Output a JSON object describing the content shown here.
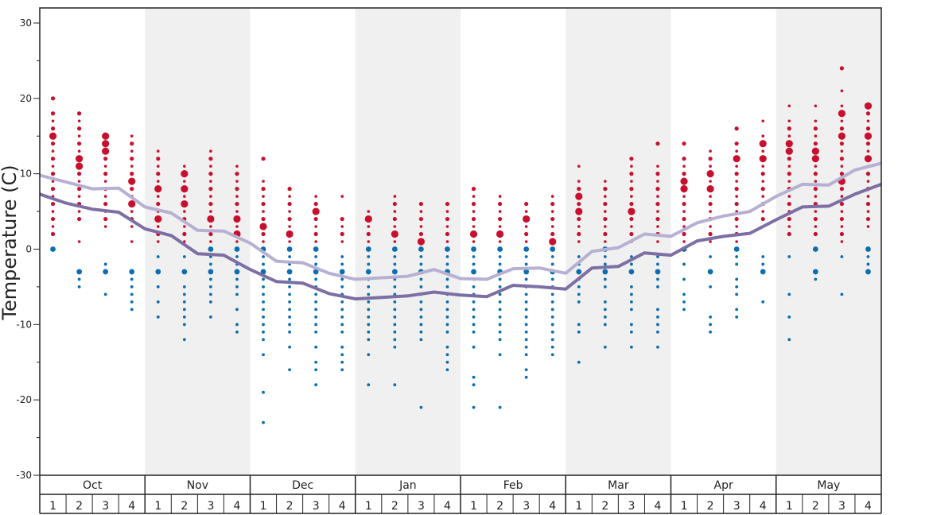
{
  "chart_data": {
    "type": "scatter",
    "title": "",
    "ylabel": "Temperature (C)",
    "xlabel": "",
    "ylim": [
      -30,
      32
    ],
    "y_ticks": [
      30,
      20,
      10,
      0,
      -10,
      -20,
      -30
    ],
    "months": [
      "Oct",
      "Nov",
      "Dec",
      "Jan",
      "Feb",
      "Mar",
      "Apr",
      "May"
    ],
    "weeks": [
      "1",
      "2",
      "3",
      "4"
    ],
    "shaded_months": [
      "Nov",
      "Jan",
      "Mar",
      "May"
    ],
    "colors": {
      "warm": "#c8102e",
      "cold": "#0a6eb0",
      "line_light": "#b7b0d2",
      "line_dark": "#7d6fa3",
      "shade": "#f0f0f0"
    },
    "series": [
      {
        "values": [
          9.8,
          8.9,
          8.0,
          8.1,
          5.6,
          4.8,
          2.5,
          2.4,
          0.8,
          -1.6,
          -1.8,
          -3.2,
          -4.0,
          -3.8,
          -3.6,
          -2.7,
          -3.9,
          -4.0,
          -2.6,
          -2.5,
          -3.2,
          -0.3,
          0.2,
          2.0,
          1.7,
          3.5,
          4.4,
          5.0,
          7.0,
          8.6,
          8.5,
          10.5,
          11.4
        ]
      },
      {
        "values": [
          7.3,
          6.1,
          5.3,
          4.9,
          2.7,
          1.8,
          -0.6,
          -0.8,
          -2.7,
          -4.3,
          -4.5,
          -5.9,
          -6.6,
          -6.4,
          -6.2,
          -5.7,
          -6.1,
          -6.3,
          -4.8,
          -5.0,
          -5.3,
          -2.5,
          -2.3,
          -0.5,
          -0.8,
          1.1,
          1.7,
          2.1,
          3.9,
          5.6,
          5.7,
          7.3,
          8.6
        ]
      }
    ],
    "x_positions_note": "week index 0..32 across Oct w1 to end of May",
    "observations": [
      {
        "week": 0,
        "warm": [
          20,
          18,
          17,
          16,
          15,
          14,
          13,
          12,
          11,
          10,
          9,
          8,
          7,
          6,
          5,
          4,
          3,
          2
        ],
        "warm_big": [
          15
        ],
        "cold": [
          0
        ]
      },
      {
        "week": 1,
        "warm": [
          18,
          17,
          16,
          15,
          14,
          13,
          12,
          11,
          10,
          9,
          8,
          7,
          6,
          5,
          4,
          1
        ],
        "warm_big": [
          12,
          11
        ],
        "cold": [
          -3,
          -4,
          -5
        ]
      },
      {
        "week": 2,
        "warm": [
          15,
          14,
          13,
          12,
          11,
          10,
          9,
          8,
          7,
          6,
          5,
          4,
          3
        ],
        "warm_big": [
          15,
          14,
          13
        ],
        "cold": [
          -2,
          -3,
          -6
        ]
      },
      {
        "week": 3,
        "warm": [
          15,
          14,
          13,
          12,
          11,
          10,
          9,
          8,
          7,
          6,
          5,
          4,
          3,
          1
        ],
        "warm_big": [
          9,
          6
        ],
        "cold": [
          -3,
          -4,
          -5,
          -6,
          -7,
          -8
        ]
      },
      {
        "week": 4,
        "warm": [
          13,
          12,
          11,
          10,
          9,
          8,
          7,
          6,
          5,
          4,
          3,
          2,
          1
        ],
        "warm_big": [
          8,
          4
        ],
        "cold": [
          -1,
          -3,
          -5,
          -7,
          -9
        ]
      },
      {
        "week": 5,
        "warm": [
          11,
          10,
          9,
          8,
          7,
          6,
          5,
          4,
          3,
          2,
          1
        ],
        "warm_big": [
          10,
          8,
          6
        ],
        "cold": [
          -1,
          -3,
          -5,
          -6,
          -7,
          -8,
          -9,
          -10,
          -12
        ]
      },
      {
        "week": 6,
        "warm": [
          13,
          12,
          11,
          10,
          9,
          8,
          7,
          6,
          5,
          4,
          3,
          2,
          1
        ],
        "warm_big": [
          4
        ],
        "cold": [
          0,
          -1,
          -2,
          -3,
          -4,
          -5,
          -6,
          -7,
          -9
        ]
      },
      {
        "week": 7,
        "warm": [
          11,
          10,
          9,
          8,
          7,
          6,
          5,
          4,
          3,
          2,
          1
        ],
        "warm_big": [
          4,
          2
        ],
        "cold": [
          0,
          -1,
          -2,
          -3,
          -4,
          -5,
          -6,
          -8,
          -10,
          -11
        ]
      },
      {
        "week": 8,
        "warm": [
          12,
          9,
          8,
          7,
          6,
          5,
          4,
          3,
          2,
          1
        ],
        "warm_big": [
          3
        ],
        "cold": [
          0,
          -1,
          -2,
          -3,
          -4,
          -5,
          -6,
          -7,
          -8,
          -9,
          -10,
          -11,
          -12,
          -14,
          -19,
          -23
        ]
      },
      {
        "week": 9,
        "warm": [
          8,
          7,
          6,
          5,
          4,
          3,
          2,
          1
        ],
        "warm_big": [
          2
        ],
        "cold": [
          0,
          -1,
          -2,
          -3,
          -4,
          -5,
          -6,
          -7,
          -8,
          -9,
          -10,
          -11,
          -13,
          -16
        ]
      },
      {
        "week": 10,
        "warm": [
          7,
          6,
          5,
          4,
          3,
          2,
          1
        ],
        "warm_big": [
          5
        ],
        "cold": [
          0,
          -1,
          -2,
          -3,
          -4,
          -5,
          -6,
          -7,
          -8,
          -9,
          -10,
          -11,
          -13,
          -15,
          -16,
          -18
        ]
      },
      {
        "week": 11,
        "warm": [
          7,
          4,
          3,
          2,
          1
        ],
        "warm_big": [],
        "cold": [
          -1,
          -2,
          -3,
          -4,
          -5,
          -6,
          -7,
          -8,
          -9,
          -10,
          -11,
          -13,
          -14,
          -15,
          -16
        ]
      },
      {
        "week": 12,
        "warm": [
          5,
          4,
          3,
          2,
          1
        ],
        "warm_big": [
          4
        ],
        "cold": [
          0,
          -1,
          -2,
          -3,
          -4,
          -5,
          -6,
          -7,
          -8,
          -9,
          -10,
          -11,
          -12,
          -14,
          -18
        ]
      },
      {
        "week": 13,
        "warm": [
          7,
          6,
          5,
          4,
          3,
          2,
          1
        ],
        "warm_big": [
          2
        ],
        "cold": [
          0,
          -1,
          -2,
          -3,
          -4,
          -5,
          -6,
          -7,
          -8,
          -9,
          -10,
          -11,
          -12,
          -13,
          -18
        ]
      },
      {
        "week": 14,
        "warm": [
          6,
          5,
          4,
          3,
          2,
          1
        ],
        "warm_big": [
          1
        ],
        "cold": [
          0,
          -1,
          -2,
          -3,
          -4,
          -5,
          -6,
          -7,
          -8,
          -9,
          -10,
          -11,
          -12,
          -21
        ]
      },
      {
        "week": 15,
        "warm": [
          6,
          5,
          4,
          3,
          2,
          1
        ],
        "warm_big": [],
        "cold": [
          0,
          -1,
          -2,
          -3,
          -4,
          -5,
          -6,
          -7,
          -8,
          -9,
          -10,
          -11,
          -13,
          -14,
          -15,
          -16
        ]
      },
      {
        "week": 16,
        "warm": [
          8,
          7,
          6,
          5,
          4,
          3,
          2,
          1
        ],
        "warm_big": [
          2
        ],
        "cold": [
          0,
          -1,
          -2,
          -3,
          -4,
          -5,
          -6,
          -7,
          -8,
          -9,
          -10,
          -11,
          -13,
          -17,
          -18,
          -21
        ]
      },
      {
        "week": 17,
        "warm": [
          7,
          6,
          5,
          4,
          3,
          2,
          1
        ],
        "warm_big": [
          2
        ],
        "cold": [
          0,
          -1,
          -2,
          -3,
          -4,
          -5,
          -6,
          -7,
          -8,
          -9,
          -10,
          -11,
          -12,
          -14,
          -21
        ]
      },
      {
        "week": 18,
        "warm": [
          6,
          5,
          4,
          3,
          2,
          1
        ],
        "warm_big": [
          4
        ],
        "cold": [
          0,
          -1,
          -2,
          -3,
          -4,
          -5,
          -6,
          -7,
          -8,
          -9,
          -10,
          -11,
          -12,
          -13,
          -14,
          -16,
          -17
        ]
      },
      {
        "week": 19,
        "warm": [
          7,
          6,
          5,
          4,
          3,
          2,
          1
        ],
        "warm_big": [
          1
        ],
        "cold": [
          0,
          -1,
          -2,
          -3,
          -4,
          -5,
          -6,
          -7,
          -8,
          -9,
          -10,
          -11,
          -12,
          -13,
          -14
        ]
      },
      {
        "week": 20,
        "warm": [
          11,
          9,
          8,
          7,
          6,
          5,
          4,
          3,
          2,
          1
        ],
        "warm_big": [
          7,
          5
        ],
        "cold": [
          -1,
          -2,
          -3,
          -4,
          -5,
          -6,
          -7,
          -10,
          -11,
          -15
        ]
      },
      {
        "week": 21,
        "warm": [
          9,
          8,
          7,
          6,
          5,
          4,
          3,
          2,
          1
        ],
        "warm_big": [],
        "cold": [
          0,
          -1,
          -2,
          -3,
          -4,
          -5,
          -7,
          -8,
          -9,
          -10,
          -13
        ]
      },
      {
        "week": 22,
        "warm": [
          12,
          11,
          10,
          9,
          8,
          7,
          6,
          5,
          4,
          3,
          2,
          1
        ],
        "warm_big": [
          5
        ],
        "cold": [
          -1,
          -2,
          -3,
          -5,
          -6,
          -7,
          -8,
          -10,
          -11,
          -13
        ]
      },
      {
        "week": 23,
        "warm": [
          14,
          11,
          10,
          9,
          8,
          7,
          6,
          5,
          4,
          3,
          2,
          1
        ],
        "warm_big": [],
        "cold": [
          -1,
          -2,
          -3,
          -4,
          -5,
          -8,
          -9,
          -10,
          -11,
          -13
        ]
      },
      {
        "week": 24,
        "warm": [
          14,
          12,
          11,
          10,
          9,
          8,
          7,
          6,
          5,
          4,
          3,
          2,
          1
        ],
        "warm_big": [
          9,
          8
        ],
        "cold": [
          0,
          -2,
          -4,
          -6,
          -7,
          -8
        ]
      },
      {
        "week": 25,
        "warm": [
          13,
          12,
          11,
          10,
          9,
          8,
          7,
          6,
          5,
          4,
          3,
          2,
          1
        ],
        "warm_big": [
          10,
          8
        ],
        "cold": [
          -1,
          -3,
          -5,
          -9,
          -10,
          -11
        ]
      },
      {
        "week": 26,
        "warm": [
          16,
          14,
          13,
          12,
          11,
          10,
          9,
          8,
          7,
          6,
          5,
          4,
          3,
          2,
          1
        ],
        "warm_big": [
          12
        ],
        "cold": [
          0,
          -1,
          -2,
          -4,
          -5,
          -6,
          -8,
          -9
        ]
      },
      {
        "week": 27,
        "warm": [
          17,
          15,
          14,
          13,
          12,
          11,
          10,
          9,
          8,
          7,
          6,
          5,
          4,
          3
        ],
        "warm_big": [
          14,
          12
        ],
        "cold": [
          -1,
          -2,
          -3,
          -7
        ]
      },
      {
        "week": 28,
        "warm": [
          19,
          17,
          16,
          15,
          14,
          13,
          12,
          11,
          10,
          9,
          8,
          7,
          6,
          5,
          4,
          3,
          2
        ],
        "warm_big": [
          14,
          13
        ],
        "cold": [
          -1,
          -6,
          -9,
          -12
        ]
      },
      {
        "week": 29,
        "warm": [
          19,
          17,
          16,
          15,
          14,
          13,
          12,
          11,
          10,
          9,
          8,
          7,
          6,
          5,
          4,
          3,
          2
        ],
        "warm_big": [
          13,
          12
        ],
        "cold": [
          0,
          -3,
          -4
        ]
      },
      {
        "week": 30,
        "warm": [
          24,
          21,
          19,
          18,
          17,
          16,
          15,
          14,
          13,
          12,
          11,
          10,
          9,
          8,
          7,
          6,
          5,
          4,
          3,
          2,
          1
        ],
        "warm_big": [
          18,
          15,
          9
        ],
        "cold": [
          -1,
          -6
        ]
      },
      {
        "week": 31,
        "warm": [
          19,
          18,
          17,
          16,
          15,
          14,
          13,
          12,
          11,
          10,
          9,
          8,
          7,
          6,
          5,
          4,
          3
        ],
        "warm_big": [
          19,
          15,
          12
        ],
        "cold": [
          0,
          -1,
          -2,
          -3
        ]
      }
    ]
  }
}
